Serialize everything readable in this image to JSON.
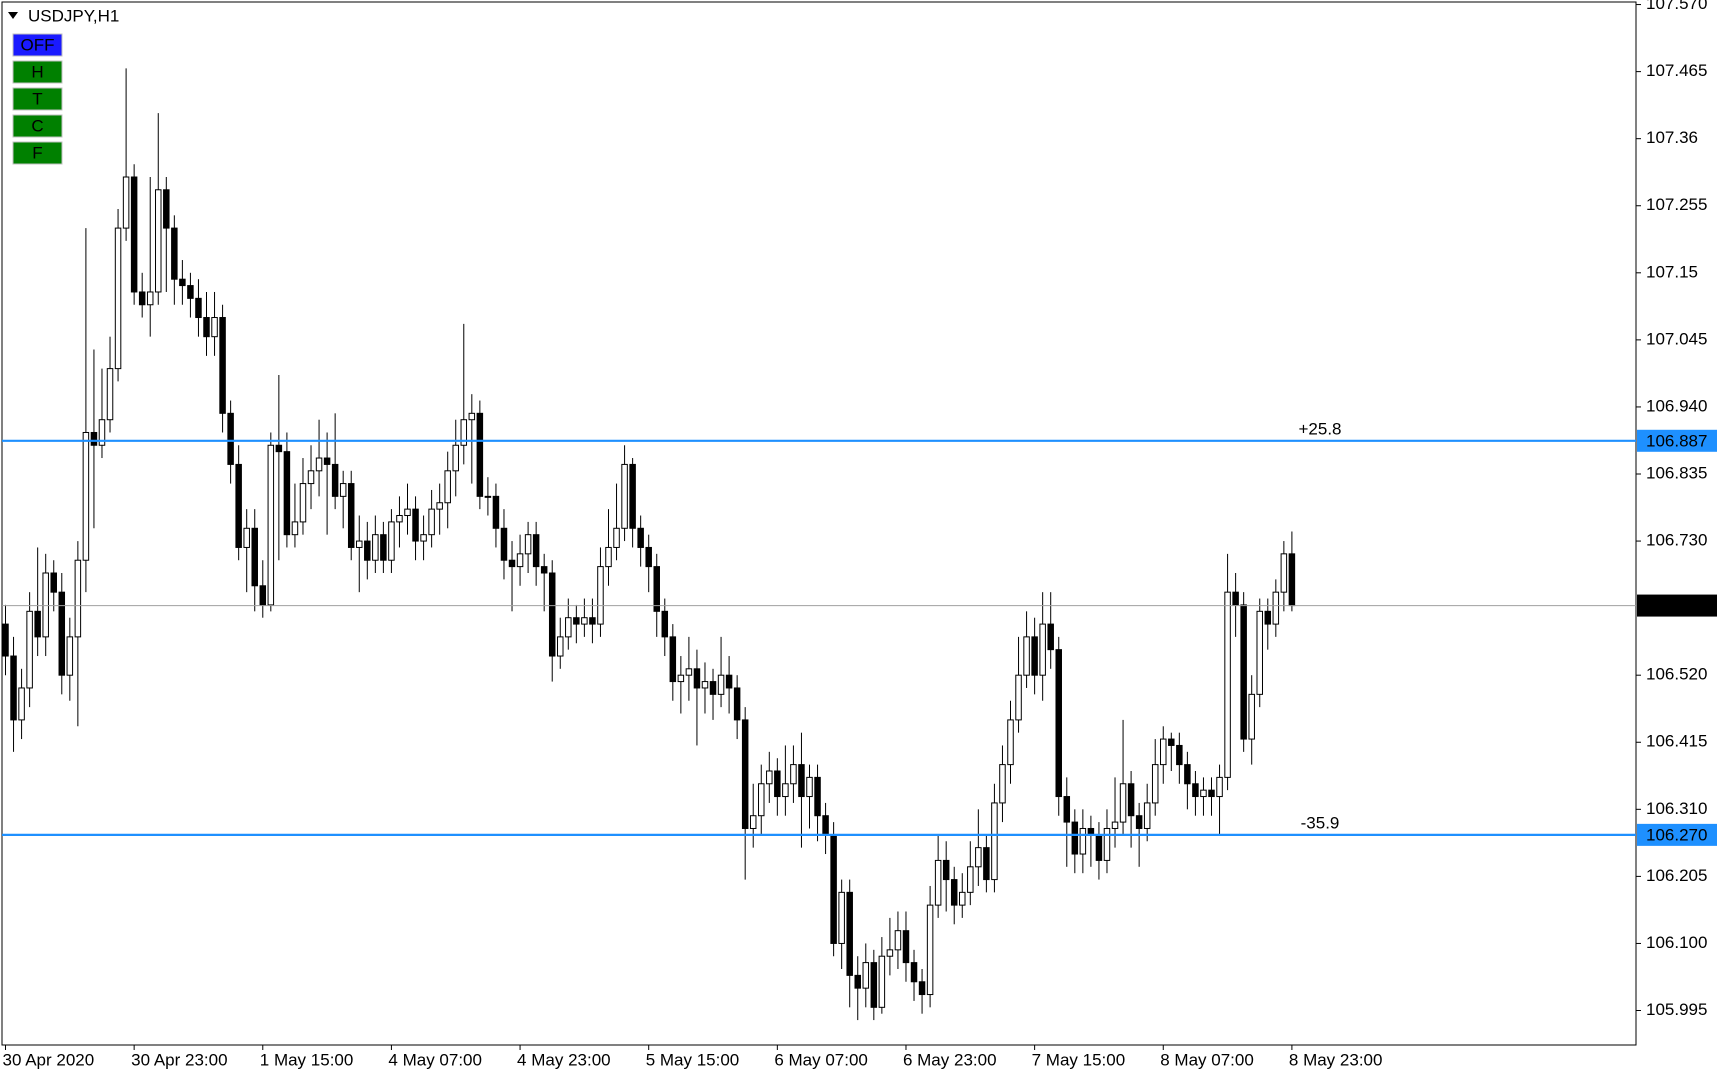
{
  "toolbar": {
    "symbol": "USDJPY,H1",
    "buttons": [
      "OFF",
      "H",
      "T",
      "C",
      "F"
    ]
  },
  "chart_data": {
    "type": "candlestick",
    "categories": [
      "30 Apr 2020",
      null,
      null,
      null,
      null,
      null,
      null,
      null,
      null,
      null,
      null,
      null,
      null,
      null,
      null,
      null,
      "30 Apr 23:00",
      null,
      null,
      null,
      null,
      null,
      null,
      null,
      null,
      null,
      null,
      null,
      null,
      null,
      null,
      null,
      "1 May 15:00",
      null,
      null,
      null,
      null,
      null,
      null,
      null,
      null,
      null,
      null,
      null,
      null,
      null,
      null,
      null,
      "4 May 07:00",
      null,
      null,
      null,
      null,
      null,
      null,
      null,
      null,
      null,
      null,
      null,
      null,
      null,
      null,
      null,
      "4 May 23:00",
      null,
      null,
      null,
      null,
      null,
      null,
      null,
      null,
      null,
      null,
      null,
      null,
      null,
      null,
      null,
      "5 May 15:00",
      null,
      null,
      null,
      null,
      null,
      null,
      null,
      null,
      null,
      null,
      null,
      null,
      null,
      null,
      null,
      "6 May 07:00",
      null,
      null,
      null,
      null,
      null,
      null,
      null,
      null,
      null,
      null,
      null,
      null,
      null,
      null,
      null,
      "6 May 23:00",
      null,
      null,
      null,
      null,
      null,
      null,
      null,
      null,
      null,
      null,
      null,
      null,
      null,
      null,
      null,
      "7 May 15:00",
      null,
      null,
      null,
      null,
      null,
      null,
      null,
      null,
      null,
      null,
      null,
      null,
      null,
      null,
      null,
      "8 May 07:00",
      null,
      null,
      null,
      null,
      null,
      null,
      null,
      null,
      null,
      null,
      null,
      null,
      null,
      null,
      null,
      "8 May 23:00"
    ],
    "open": [
      106.6,
      106.55,
      106.45,
      106.5,
      106.62,
      106.58,
      106.68,
      106.65,
      106.52,
      106.58,
      106.7,
      106.9,
      106.88,
      106.92,
      107.0,
      107.22,
      107.3,
      107.12,
      107.1,
      107.12,
      107.28,
      107.22,
      107.14,
      107.13,
      107.11,
      107.08,
      107.05,
      107.08,
      106.93,
      106.85,
      106.72,
      106.75,
      106.66,
      106.63,
      106.88,
      106.87,
      106.74,
      106.76,
      106.82,
      106.84,
      106.86,
      106.85,
      106.8,
      106.82,
      106.72,
      106.73,
      106.7,
      106.74,
      106.7,
      106.76,
      106.77,
      106.78,
      106.73,
      106.74,
      106.78,
      106.79,
      106.84,
      106.88,
      106.92,
      106.93,
      106.8,
      106.8,
      106.75,
      106.7,
      106.69,
      106.71,
      106.74,
      106.69,
      106.68,
      106.55,
      106.58,
      106.61,
      106.6,
      106.61,
      106.6,
      106.69,
      106.72,
      106.75,
      106.85,
      106.75,
      106.72,
      106.69,
      106.62,
      106.58,
      106.51,
      106.52,
      106.53,
      106.5,
      106.51,
      106.49,
      106.52,
      106.5,
      106.45,
      106.28,
      106.3,
      106.35,
      106.37,
      106.33,
      106.35,
      106.38,
      106.33,
      106.36,
      106.3,
      106.27,
      106.1,
      106.18,
      106.05,
      106.03,
      106.07,
      106.0,
      106.08,
      106.09,
      106.12,
      106.07,
      106.04,
      106.02,
      106.16,
      106.23,
      106.2,
      106.16,
      106.18,
      106.22,
      106.25,
      106.2,
      106.32,
      106.38,
      106.45,
      106.52,
      106.58,
      106.52,
      106.6,
      106.56,
      106.33,
      106.29,
      106.24,
      106.28,
      106.27,
      106.23,
      106.28,
      106.29,
      106.35,
      106.3,
      106.28,
      106.32,
      106.38,
      106.42,
      106.41,
      106.38,
      106.35,
      106.33,
      106.34,
      106.33,
      106.36,
      106.65,
      106.63,
      106.42,
      106.49,
      106.62,
      106.6,
      106.65,
      106.71
    ],
    "high": [
      106.63,
      106.58,
      106.53,
      106.65,
      106.72,
      106.71,
      106.7,
      106.68,
      106.61,
      106.73,
      107.22,
      107.03,
      107.0,
      107.05,
      107.25,
      107.47,
      107.32,
      107.15,
      107.3,
      107.4,
      107.3,
      107.24,
      107.17,
      107.15,
      107.14,
      107.12,
      107.12,
      107.1,
      106.95,
      106.88,
      106.78,
      106.78,
      106.7,
      106.9,
      106.99,
      106.9,
      106.82,
      106.86,
      106.88,
      106.92,
      106.9,
      106.93,
      106.84,
      106.84,
      106.77,
      106.76,
      106.77,
      106.76,
      106.78,
      106.8,
      106.82,
      106.8,
      106.77,
      106.81,
      106.82,
      106.87,
      106.92,
      107.07,
      106.96,
      106.95,
      106.83,
      106.82,
      106.78,
      106.73,
      106.74,
      106.76,
      106.76,
      106.71,
      106.7,
      106.61,
      106.64,
      106.63,
      106.64,
      106.64,
      106.72,
      106.78,
      106.82,
      106.88,
      106.86,
      106.77,
      106.74,
      106.71,
      106.64,
      106.6,
      106.55,
      106.58,
      106.56,
      106.54,
      106.53,
      106.58,
      106.55,
      106.52,
      106.47,
      106.35,
      106.38,
      106.4,
      106.39,
      106.41,
      106.41,
      106.43,
      106.38,
      106.38,
      106.32,
      106.29,
      106.2,
      106.2,
      106.08,
      106.1,
      106.09,
      106.11,
      106.14,
      106.15,
      106.15,
      106.09,
      106.06,
      106.19,
      106.27,
      106.26,
      106.22,
      106.21,
      106.26,
      106.31,
      106.27,
      106.35,
      106.41,
      106.48,
      106.58,
      106.62,
      106.61,
      106.65,
      106.65,
      106.58,
      106.36,
      106.31,
      106.31,
      106.3,
      106.29,
      106.31,
      106.36,
      106.45,
      106.37,
      106.32,
      106.35,
      106.42,
      106.44,
      106.43,
      106.43,
      106.4,
      106.37,
      106.36,
      106.36,
      106.38,
      106.71,
      106.68,
      106.65,
      106.52,
      106.64,
      106.64,
      106.67,
      106.73,
      106.745
    ],
    "low": [
      106.52,
      106.4,
      106.42,
      106.47,
      106.55,
      106.55,
      106.62,
      106.49,
      106.48,
      106.44,
      106.65,
      106.75,
      106.86,
      106.9,
      106.98,
      107.2,
      107.1,
      107.08,
      107.05,
      107.1,
      107.12,
      107.1,
      107.1,
      107.08,
      107.05,
      107.02,
      107.02,
      106.9,
      106.82,
      106.7,
      106.65,
      106.62,
      106.61,
      106.62,
      106.7,
      106.72,
      106.72,
      106.74,
      106.78,
      106.8,
      106.74,
      106.78,
      106.75,
      106.7,
      106.65,
      106.67,
      106.68,
      106.68,
      106.68,
      106.72,
      106.74,
      106.7,
      106.7,
      106.72,
      106.74,
      106.75,
      106.8,
      106.85,
      106.82,
      106.78,
      106.77,
      106.72,
      106.67,
      106.62,
      106.66,
      106.68,
      106.66,
      106.62,
      106.51,
      106.53,
      106.56,
      106.57,
      106.58,
      106.57,
      106.58,
      106.66,
      106.7,
      106.73,
      106.72,
      106.69,
      106.65,
      106.58,
      106.55,
      106.48,
      106.46,
      106.48,
      106.41,
      106.46,
      106.45,
      106.47,
      106.46,
      106.42,
      106.2,
      106.25,
      106.27,
      106.32,
      106.3,
      106.3,
      106.32,
      106.25,
      106.28,
      106.26,
      106.24,
      106.08,
      106.06,
      106.0,
      105.98,
      106.0,
      105.98,
      105.99,
      106.05,
      106.06,
      106.04,
      106.01,
      105.99,
      106.0,
      106.14,
      106.15,
      106.13,
      106.14,
      106.16,
      106.19,
      106.18,
      106.18,
      106.29,
      106.35,
      106.43,
      106.5,
      106.49,
      106.48,
      106.53,
      106.3,
      106.22,
      106.21,
      106.21,
      106.22,
      106.2,
      106.21,
      106.25,
      106.27,
      106.25,
      106.22,
      106.26,
      106.3,
      106.35,
      106.37,
      106.35,
      106.31,
      106.3,
      106.3,
      106.3,
      106.27,
      106.34,
      106.58,
      106.4,
      106.38,
      106.47,
      106.56,
      106.58,
      106.62,
      106.62
    ],
    "close": [
      106.55,
      106.45,
      106.5,
      106.62,
      106.58,
      106.68,
      106.65,
      106.52,
      106.58,
      106.7,
      106.9,
      106.88,
      106.92,
      107.0,
      107.22,
      107.3,
      107.12,
      107.1,
      107.12,
      107.28,
      107.22,
      107.14,
      107.13,
      107.11,
      107.08,
      107.05,
      107.08,
      106.93,
      106.85,
      106.72,
      106.75,
      106.66,
      106.63,
      106.88,
      106.87,
      106.74,
      106.76,
      106.82,
      106.84,
      106.86,
      106.85,
      106.8,
      106.82,
      106.72,
      106.73,
      106.7,
      106.74,
      106.7,
      106.76,
      106.77,
      106.78,
      106.73,
      106.74,
      106.78,
      106.79,
      106.84,
      106.88,
      106.92,
      106.93,
      106.8,
      106.8,
      106.75,
      106.7,
      106.69,
      106.71,
      106.74,
      106.69,
      106.68,
      106.55,
      106.58,
      106.61,
      106.6,
      106.61,
      106.6,
      106.69,
      106.72,
      106.75,
      106.85,
      106.75,
      106.72,
      106.69,
      106.62,
      106.58,
      106.51,
      106.52,
      106.53,
      106.5,
      106.51,
      106.49,
      106.52,
      106.5,
      106.45,
      106.28,
      106.3,
      106.35,
      106.37,
      106.33,
      106.35,
      106.38,
      106.33,
      106.36,
      106.3,
      106.27,
      106.1,
      106.18,
      106.05,
      106.03,
      106.07,
      106.0,
      106.08,
      106.09,
      106.12,
      106.07,
      106.04,
      106.02,
      106.16,
      106.23,
      106.2,
      106.16,
      106.18,
      106.22,
      106.25,
      106.2,
      106.32,
      106.38,
      106.45,
      106.52,
      106.58,
      106.52,
      106.6,
      106.56,
      106.33,
      106.29,
      106.24,
      106.28,
      106.27,
      106.23,
      106.28,
      106.29,
      106.35,
      106.3,
      106.28,
      106.32,
      106.38,
      106.42,
      106.41,
      106.38,
      106.35,
      106.33,
      106.34,
      106.33,
      106.36,
      106.65,
      106.63,
      106.42,
      106.49,
      106.62,
      106.6,
      106.65,
      106.71,
      106.629
    ],
    "color_up": "#ffffff",
    "color_down": "#000000",
    "ylim": [
      105.941,
      107.574
    ],
    "yticks": [
      {
        "value": 107.57,
        "label": "107.570"
      },
      107.465,
      107.36,
      107.255,
      107.15,
      107.045,
      {
        "value": 106.94,
        "label": "106.940"
      },
      106.835,
      {
        "value": 106.73,
        "label": "106.730"
      },
      {
        "value": 106.52,
        "label": "106.520"
      },
      106.415,
      {
        "value": 106.31,
        "label": "106.310"
      },
      106.205,
      {
        "value": 106.1,
        "label": "106.100"
      },
      105.995
    ],
    "levels": [
      {
        "value": 106.887,
        "label": "+25.8",
        "color": "#1e90ff"
      },
      {
        "value": 106.27,
        "value_label": "106.270",
        "label": "-35.9",
        "color": "#1e90ff"
      }
    ],
    "current_price_color": "#000000"
  }
}
